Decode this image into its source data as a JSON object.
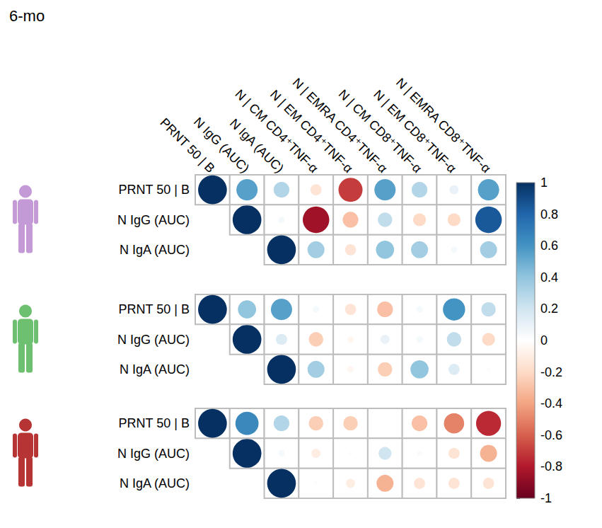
{
  "chart_data": {
    "type": "correlation_matrix",
    "title": "6-mo",
    "columns": [
      "PRNT 50 | B",
      "N IgG (AUC)",
      "N IgA (AUC)",
      "N | CM CD4⁺TNF-α",
      "N | EM CD4⁺TNF-α",
      "N | EMRA CD4⁺TNF-α",
      "N | CM CD8⁺TNF-α",
      "N | EM CD8⁺TNF-α",
      "N | EMRA CD8⁺TNF-α"
    ],
    "panels": [
      {
        "color": "#c49ad6",
        "rows": [
          "PRNT 50 | B",
          "N IgG (AUC)",
          "N IgA (AUC)"
        ],
        "values": [
          [
            1,
            0.55,
            0.3,
            -0.15,
            -0.7,
            0.55,
            0.3,
            0.1,
            0.55
          ],
          [
            null,
            1,
            0.05,
            -0.85,
            -0.3,
            0.25,
            -0.2,
            -0.2,
            0.85
          ],
          [
            null,
            null,
            1,
            0.35,
            -0.15,
            0.4,
            0.35,
            0.05,
            0.35
          ]
        ]
      },
      {
        "color": "#6cc070",
        "rows": [
          "PRNT 50 | B",
          "N IgG (AUC)",
          "N IgA (AUC)"
        ],
        "values": [
          [
            1,
            0.4,
            0.55,
            0.05,
            -0.15,
            -0.3,
            0.05,
            0.6,
            0.25
          ],
          [
            null,
            1,
            0.15,
            -0.25,
            -0.05,
            0.1,
            0.05,
            0.25,
            -0.2
          ],
          [
            null,
            null,
            1,
            0.35,
            -0.05,
            -0.25,
            0.4,
            0.15,
            0.02
          ]
        ]
      },
      {
        "color": "#b73434",
        "rows": [
          "PRNT 50 | B",
          "N IgG (AUC)",
          "N IgA (AUC)"
        ],
        "values": [
          [
            1,
            0.65,
            0.3,
            -0.25,
            -0.25,
            0.0,
            -0.3,
            -0.5,
            -0.75
          ],
          [
            null,
            1,
            0.05,
            -0.1,
            0.02,
            0.2,
            0.03,
            -0.15,
            -0.35
          ],
          [
            null,
            null,
            1,
            0.02,
            -0.1,
            -0.35,
            -0.15,
            -0.15,
            -0.15
          ]
        ]
      }
    ],
    "colorbar": {
      "range": [
        -1,
        1
      ],
      "ticks": [
        -1,
        -0.8,
        -0.6,
        -0.4,
        -0.2,
        0,
        0.2,
        0.4,
        0.6,
        0.8,
        1
      ],
      "colors": [
        "#67001F",
        "#B2182B",
        "#D6604D",
        "#F4A582",
        "#FDDBC7",
        "#FFFFFF",
        "#D1E5F0",
        "#92C5DE",
        "#4393C3",
        "#2166AC",
        "#053061"
      ]
    }
  }
}
